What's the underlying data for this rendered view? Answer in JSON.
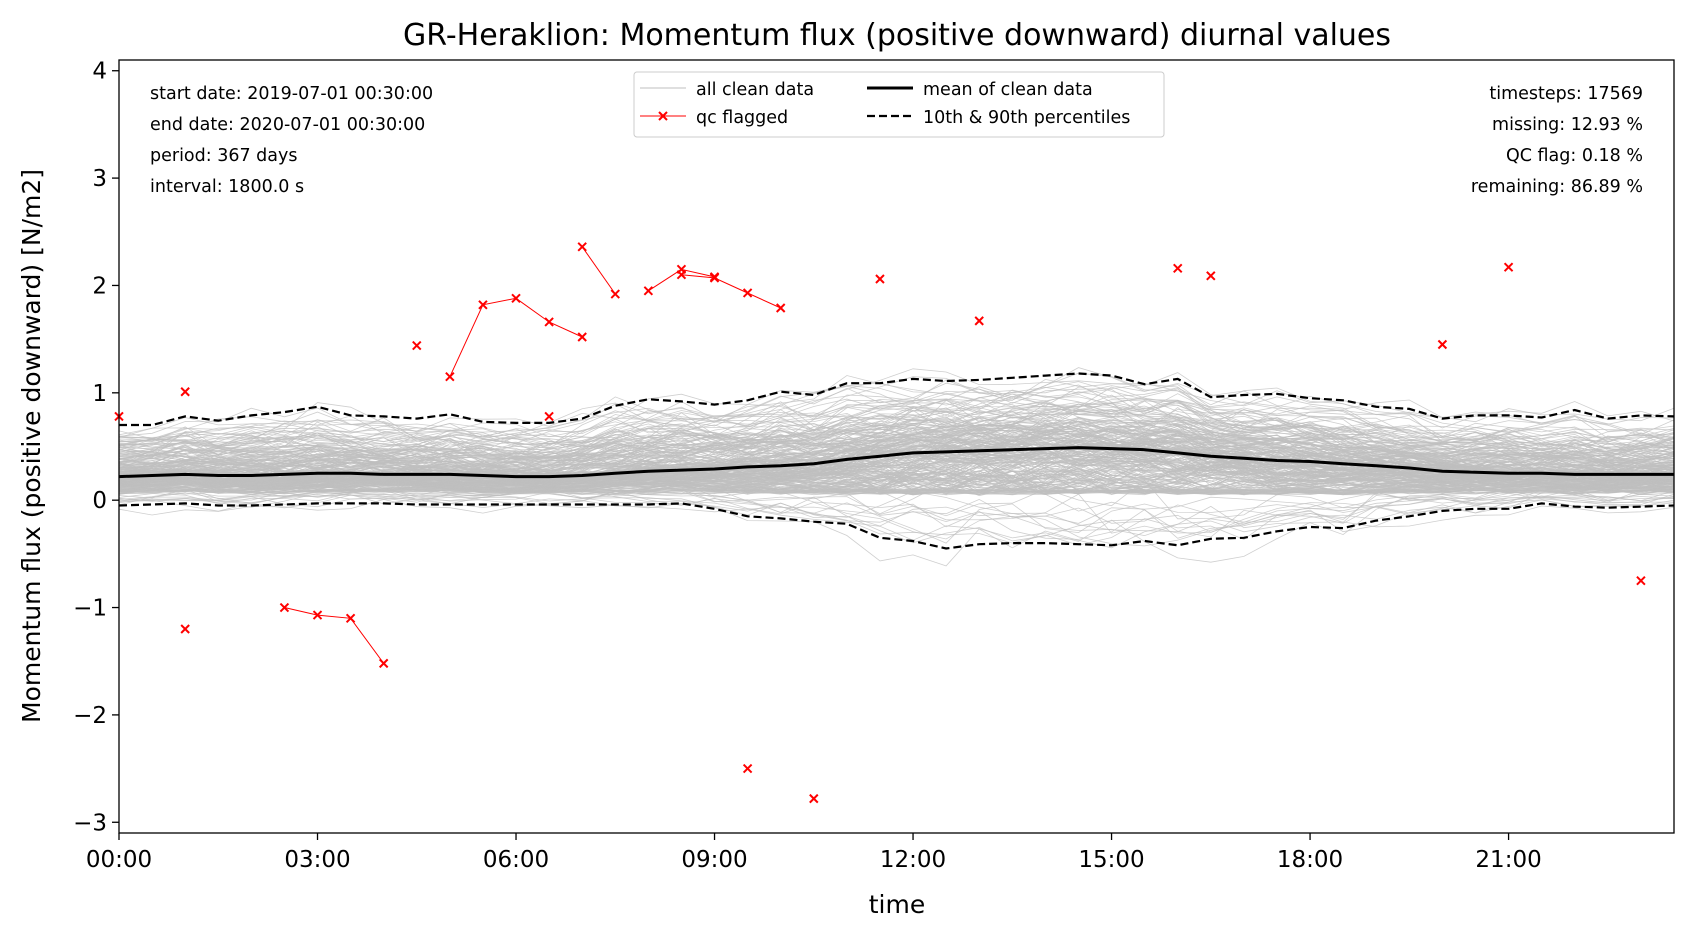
{
  "chart_data": {
    "type": "line",
    "title": "GR-Heraklion: Momentum flux (positive downward) diurnal values",
    "xlabel": "time",
    "ylabel": "Momentum flux (positive downward) [N/m2]",
    "xlim_hours": [
      0,
      23.5
    ],
    "ylim": [
      -3.1,
      4.1
    ],
    "x_ticks": [
      "00:00",
      "03:00",
      "06:00",
      "09:00",
      "12:00",
      "15:00",
      "18:00",
      "21:00"
    ],
    "y_ticks": [
      -3,
      -2,
      -1,
      0,
      1,
      2,
      3,
      4
    ],
    "y_tick_labels": [
      "−3",
      "−2",
      "−1",
      "0",
      "1",
      "2",
      "3",
      "4"
    ],
    "info_left": [
      "start date: 2019-07-01 00:30:00",
      "end date: 2020-07-01 00:30:00",
      "period: 367 days",
      "interval: 1800.0 s"
    ],
    "info_right": [
      "timesteps: 17569",
      "missing: 12.93 %",
      "QC flag: 0.18 %",
      "remaining: 86.89 %"
    ],
    "legend": {
      "position": "upper center",
      "entries": [
        {
          "label": "all clean data",
          "style": "grey-thin-line"
        },
        {
          "label": "qc flagged",
          "style": "red-line-x-marker"
        },
        {
          "label": "mean of clean data",
          "style": "black-solid"
        },
        {
          "label": "10th & 90th percentiles",
          "style": "black-dashed"
        }
      ]
    },
    "colors": {
      "clean_data": "#bfbfbf",
      "qc_flagged": "#ff0000",
      "mean": "#000000",
      "percentiles": "#000000"
    },
    "x_hours": [
      0,
      0.5,
      1,
      1.5,
      2,
      2.5,
      3,
      3.5,
      4,
      4.5,
      5,
      5.5,
      6,
      6.5,
      7,
      7.5,
      8,
      8.5,
      9,
      9.5,
      10,
      10.5,
      11,
      11.5,
      12,
      12.5,
      13,
      13.5,
      14,
      14.5,
      15,
      15.5,
      16,
      16.5,
      17,
      17.5,
      18,
      18.5,
      19,
      19.5,
      20,
      20.5,
      21,
      21.5,
      22,
      22.5,
      23,
      23.5
    ],
    "series": [
      {
        "name": "mean of clean data",
        "values": [
          0.22,
          0.23,
          0.24,
          0.23,
          0.23,
          0.24,
          0.25,
          0.25,
          0.24,
          0.24,
          0.24,
          0.23,
          0.22,
          0.22,
          0.23,
          0.25,
          0.27,
          0.28,
          0.29,
          0.31,
          0.32,
          0.34,
          0.38,
          0.41,
          0.44,
          0.45,
          0.46,
          0.47,
          0.48,
          0.49,
          0.48,
          0.47,
          0.44,
          0.41,
          0.39,
          0.37,
          0.36,
          0.34,
          0.32,
          0.3,
          0.27,
          0.26,
          0.25,
          0.25,
          0.24,
          0.24,
          0.24,
          0.24
        ]
      },
      {
        "name": "10th & 90th percentiles",
        "part": "upper",
        "values": [
          0.7,
          0.7,
          0.78,
          0.74,
          0.79,
          0.82,
          0.87,
          0.79,
          0.78,
          0.76,
          0.8,
          0.73,
          0.72,
          0.72,
          0.76,
          0.88,
          0.94,
          0.92,
          0.89,
          0.93,
          1.01,
          0.98,
          1.09,
          1.09,
          1.13,
          1.11,
          1.12,
          1.14,
          1.16,
          1.18,
          1.16,
          1.08,
          1.13,
          0.96,
          0.98,
          0.99,
          0.95,
          0.93,
          0.87,
          0.85,
          0.76,
          0.79,
          0.79,
          0.77,
          0.84,
          0.76,
          0.79,
          0.78
        ]
      },
      {
        "name": "10th & 90th percentiles",
        "part": "lower",
        "values": [
          -0.05,
          -0.04,
          -0.03,
          -0.05,
          -0.05,
          -0.04,
          -0.03,
          -0.03,
          -0.03,
          -0.04,
          -0.04,
          -0.04,
          -0.04,
          -0.04,
          -0.04,
          -0.04,
          -0.04,
          -0.03,
          -0.08,
          -0.15,
          -0.17,
          -0.2,
          -0.22,
          -0.35,
          -0.38,
          -0.45,
          -0.41,
          -0.4,
          -0.4,
          -0.41,
          -0.42,
          -0.38,
          -0.42,
          -0.36,
          -0.35,
          -0.29,
          -0.25,
          -0.26,
          -0.19,
          -0.15,
          -0.1,
          -0.08,
          -0.08,
          -0.03,
          -0.06,
          -0.07,
          -0.06,
          -0.05
        ]
      }
    ],
    "qc_flagged": [
      {
        "hours": [
          0
        ],
        "values": [
          0.78
        ]
      },
      {
        "hours": [
          1
        ],
        "values": [
          1.01
        ]
      },
      {
        "hours": [
          1
        ],
        "values": [
          -1.2
        ]
      },
      {
        "hours": [
          2.5,
          3,
          3.5,
          4
        ],
        "values": [
          -1.0,
          -1.07,
          -1.1,
          -1.52
        ]
      },
      {
        "hours": [
          4.5
        ],
        "values": [
          1.44
        ]
      },
      {
        "hours": [
          5,
          5.5,
          6,
          6.5,
          7
        ],
        "values": [
          1.15,
          1.82,
          1.88,
          1.66,
          1.52
        ]
      },
      {
        "hours": [
          6.5
        ],
        "values": [
          0.78
        ]
      },
      {
        "hours": [
          7,
          7.5
        ],
        "values": [
          2.36,
          1.92
        ]
      },
      {
        "hours": [
          8,
          8.5,
          9
        ],
        "values": [
          1.95,
          2.15,
          2.08
        ]
      },
      {
        "hours": [
          8.5,
          9,
          9.5,
          10
        ],
        "values": [
          2.1,
          2.07,
          1.93,
          1.79
        ]
      },
      {
        "hours": [
          9.5
        ],
        "values": [
          -2.5
        ]
      },
      {
        "hours": [
          10.5
        ],
        "values": [
          -2.78
        ]
      },
      {
        "hours": [
          11.5
        ],
        "values": [
          2.06
        ]
      },
      {
        "hours": [
          13
        ],
        "values": [
          1.67
        ]
      },
      {
        "hours": [
          16
        ],
        "values": [
          2.16
        ]
      },
      {
        "hours": [
          16.5
        ],
        "values": [
          2.09
        ]
      },
      {
        "hours": [
          20
        ],
        "values": [
          1.45
        ]
      },
      {
        "hours": [
          21
        ],
        "values": [
          2.17
        ]
      },
      {
        "hours": [
          23
        ],
        "values": [
          -0.75
        ]
      }
    ],
    "grid": false
  }
}
